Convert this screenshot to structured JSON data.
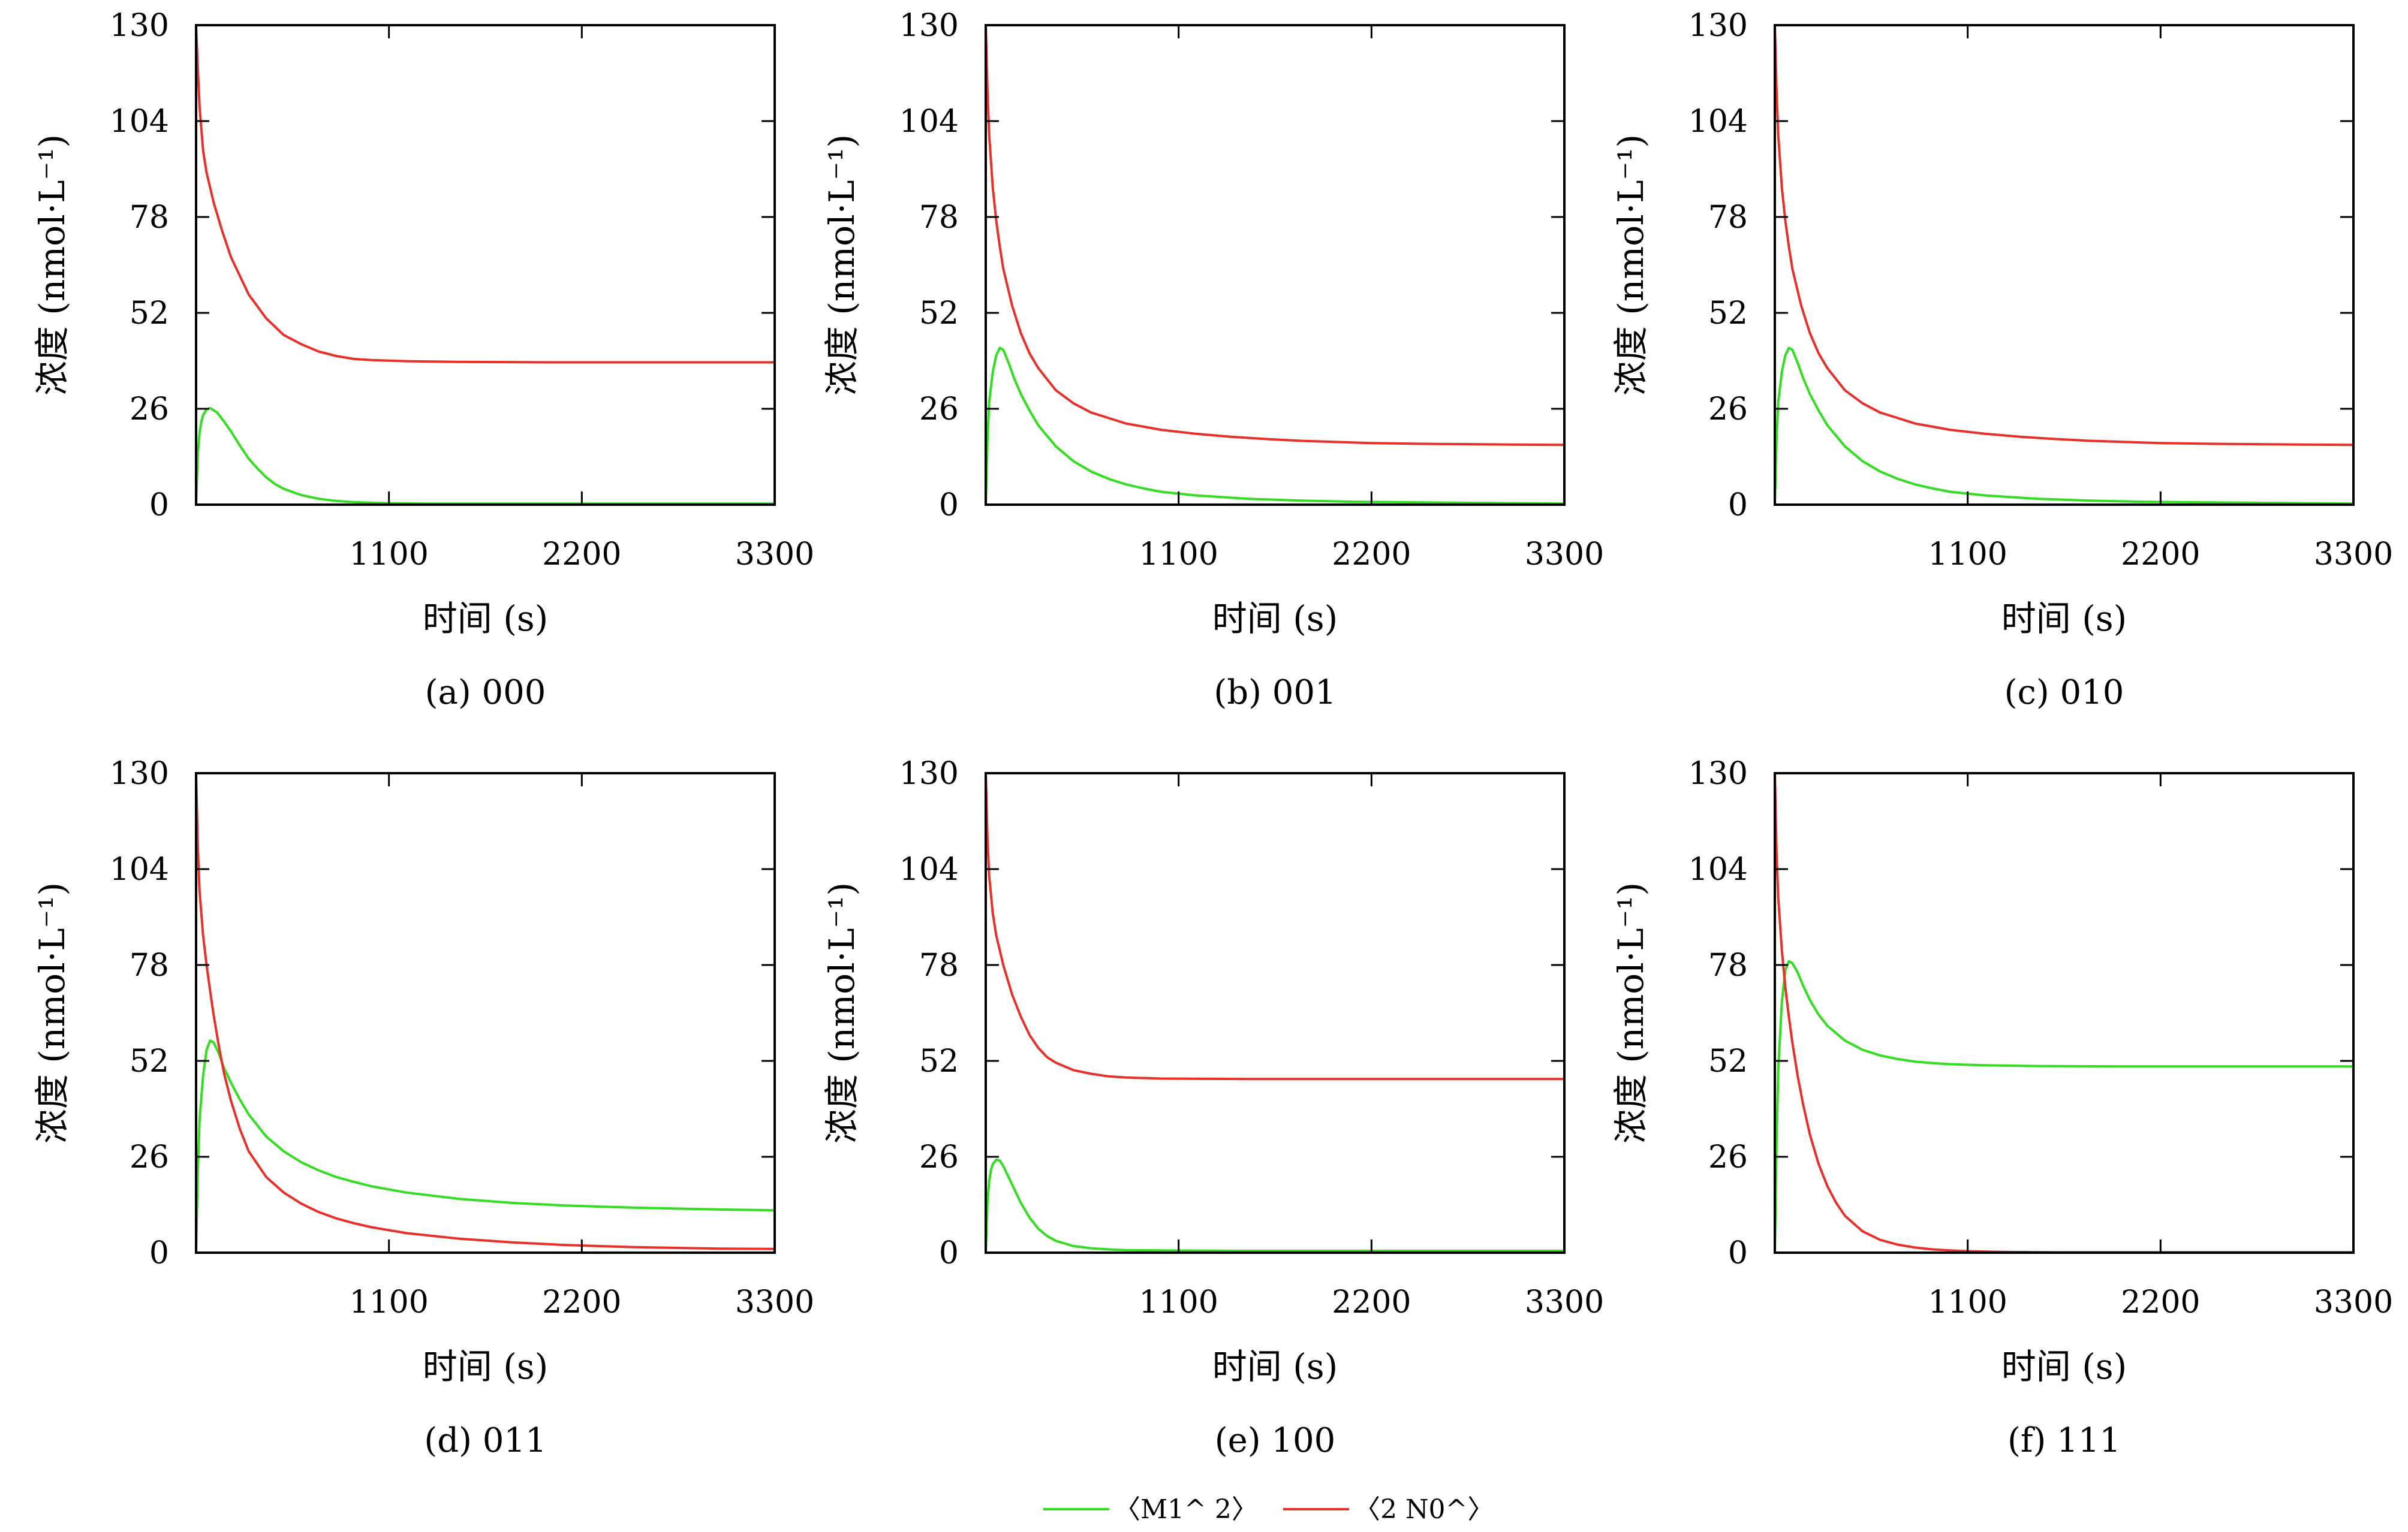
{
  "colors": {
    "green": "#33dd22",
    "red": "#e8302a",
    "frame": "#000000"
  },
  "legend": {
    "entries": [
      {
        "label": "〈M1^ 2〉",
        "color": "#33dd22"
      },
      {
        "label": "〈2 N0^〉",
        "color": "#e8302a"
      }
    ]
  },
  "chart_data": [
    {
      "type": "line",
      "caption": "(a) 000",
      "xlabel": "时间 (s)",
      "ylabel": "浓度 (nmol·L⁻¹)",
      "xlim": [
        0,
        3300
      ],
      "ylim": [
        0,
        130
      ],
      "xticks": [
        1100,
        2200,
        3300
      ],
      "yticks": [
        0,
        26,
        52,
        78,
        104,
        130
      ],
      "series": [
        {
          "name": "〈M1^ 2〉",
          "color": "#33dd22",
          "x": [
            0,
            10,
            20,
            30,
            40,
            60,
            80,
            120,
            160,
            200,
            250,
            300,
            350,
            400,
            450,
            500,
            600,
            700,
            800,
            900,
            1000,
            1100,
            1300,
            1600,
            2000,
            2500,
            3000,
            3300
          ],
          "y": [
            0,
            14,
            19.5,
            22.5,
            24.3,
            25.8,
            26.2,
            25.0,
            22.5,
            19.8,
            16.0,
            12.5,
            9.8,
            7.4,
            5.6,
            4.3,
            2.6,
            1.6,
            1.0,
            0.7,
            0.5,
            0.4,
            0.3,
            0.3,
            0.3,
            0.3,
            0.3,
            0.3
          ]
        },
        {
          "name": "〈2 N0^〉",
          "color": "#e8302a",
          "x": [
            0,
            10,
            20,
            40,
            60,
            80,
            100,
            150,
            200,
            250,
            300,
            400,
            500,
            600,
            700,
            800,
            900,
            1000,
            1200,
            1500,
            2000,
            2500,
            3000,
            3300
          ],
          "y": [
            130,
            118,
            108,
            96,
            90,
            86,
            82,
            74,
            67,
            62,
            57,
            50.5,
            46,
            43.5,
            41.5,
            40.3,
            39.5,
            39.2,
            38.9,
            38.7,
            38.6,
            38.6,
            38.6,
            38.6
          ]
        }
      ]
    },
    {
      "type": "line",
      "caption": "(b) 001",
      "xlabel": "时间 (s)",
      "ylabel": "浓度 (nmol·L⁻¹)",
      "xlim": [
        0,
        3300
      ],
      "ylim": [
        0,
        130
      ],
      "xticks": [
        1100,
        2200,
        3300
      ],
      "yticks": [
        0,
        26,
        52,
        78,
        104,
        130
      ],
      "series": [
        {
          "name": "〈M1^ 2〉",
          "color": "#33dd22",
          "x": [
            0,
            10,
            20,
            40,
            60,
            80,
            100,
            130,
            160,
            200,
            250,
            300,
            400,
            500,
            600,
            700,
            800,
            900,
            1000,
            1200,
            1500,
            1800,
            2100,
            2500,
            3000,
            3300
          ],
          "y": [
            0,
            18,
            28,
            36,
            40.5,
            42.5,
            42.0,
            38.5,
            34.5,
            30.0,
            25.5,
            21.5,
            15.8,
            11.8,
            9.0,
            7.0,
            5.5,
            4.4,
            3.5,
            2.5,
            1.6,
            1.1,
            0.8,
            0.6,
            0.4,
            0.3
          ]
        },
        {
          "name": "〈2 N0^〉",
          "color": "#e8302a",
          "x": [
            0,
            10,
            20,
            40,
            60,
            80,
            100,
            150,
            200,
            250,
            300,
            400,
            500,
            600,
            700,
            800,
            1000,
            1200,
            1400,
            1600,
            1800,
            2000,
            2200,
            2500,
            3000,
            3300
          ],
          "y": [
            130,
            112,
            100,
            86,
            77,
            70,
            64,
            54,
            46.5,
            41,
            37,
            31,
            27.5,
            25,
            23.5,
            22.0,
            20.3,
            19.2,
            18.4,
            17.8,
            17.3,
            17.0,
            16.7,
            16.5,
            16.3,
            16.2
          ]
        }
      ]
    },
    {
      "type": "line",
      "caption": "(c) 010",
      "xlabel": "时间 (s)",
      "ylabel": "浓度 (nmol·L⁻¹)",
      "xlim": [
        0,
        3300
      ],
      "ylim": [
        0,
        130
      ],
      "xticks": [
        1100,
        2200,
        3300
      ],
      "yticks": [
        0,
        26,
        52,
        78,
        104,
        130
      ],
      "series": [
        {
          "name": "〈M1^ 2〉",
          "color": "#33dd22",
          "x": [
            0,
            10,
            20,
            40,
            60,
            80,
            100,
            130,
            160,
            200,
            250,
            300,
            400,
            500,
            600,
            700,
            800,
            900,
            1000,
            1200,
            1500,
            1800,
            2100,
            2500,
            3000,
            3300
          ],
          "y": [
            0,
            18,
            28,
            36,
            40.5,
            42.5,
            42.0,
            38.5,
            34.5,
            30.0,
            25.5,
            21.5,
            15.8,
            11.8,
            9.0,
            7.0,
            5.5,
            4.4,
            3.5,
            2.5,
            1.6,
            1.1,
            0.8,
            0.6,
            0.4,
            0.3
          ]
        },
        {
          "name": "〈2 N0^〉",
          "color": "#e8302a",
          "x": [
            0,
            10,
            20,
            40,
            60,
            80,
            100,
            150,
            200,
            250,
            300,
            400,
            500,
            600,
            700,
            800,
            1000,
            1200,
            1400,
            1600,
            1800,
            2000,
            2200,
            2500,
            3000,
            3300
          ],
          "y": [
            130,
            112,
            100,
            86,
            77,
            70,
            64,
            54,
            46.5,
            41,
            37,
            31,
            27.5,
            25,
            23.5,
            22.0,
            20.3,
            19.2,
            18.4,
            17.8,
            17.3,
            17.0,
            16.7,
            16.5,
            16.3,
            16.2
          ]
        }
      ]
    },
    {
      "type": "line",
      "caption": "(d) 011",
      "xlabel": "时间 (s)",
      "ylabel": "浓度 (nmol·L⁻¹)",
      "xlim": [
        0,
        3300
      ],
      "ylim": [
        0,
        130
      ],
      "xticks": [
        1100,
        2200,
        3300
      ],
      "yticks": [
        0,
        26,
        52,
        78,
        104,
        130
      ],
      "series": [
        {
          "name": "〈M1^ 2〉",
          "color": "#33dd22",
          "x": [
            0,
            10,
            20,
            40,
            60,
            80,
            100,
            130,
            160,
            200,
            250,
            300,
            400,
            500,
            600,
            700,
            800,
            900,
            1000,
            1200,
            1500,
            1800,
            2100,
            2500,
            3000,
            3300
          ],
          "y": [
            0,
            22,
            36,
            48,
            55,
            57.5,
            57.0,
            54,
            50,
            46,
            41.5,
            37.5,
            31.5,
            27.5,
            24.5,
            22.3,
            20.5,
            19.2,
            18.0,
            16.3,
            14.6,
            13.5,
            12.8,
            12.2,
            11.7,
            11.5
          ]
        },
        {
          "name": "〈2 N0^〉",
          "color": "#e8302a",
          "x": [
            0,
            10,
            20,
            40,
            60,
            80,
            100,
            130,
            160,
            200,
            250,
            300,
            400,
            500,
            600,
            700,
            800,
            900,
            1000,
            1200,
            1500,
            1800,
            2100,
            2500,
            3000,
            3300
          ],
          "y": [
            130,
            110,
            98,
            86,
            78,
            71,
            64.5,
            56,
            48.5,
            41,
            33.5,
            27.5,
            20.5,
            16.3,
            13.3,
            11.0,
            9.3,
            8.0,
            6.9,
            5.3,
            3.8,
            2.8,
            2.1,
            1.5,
            1.1,
            1.0
          ]
        }
      ]
    },
    {
      "type": "line",
      "caption": "(e) 100",
      "xlabel": "时间 (s)",
      "ylabel": "浓度 (nmol·L⁻¹)",
      "xlim": [
        0,
        3300
      ],
      "ylim": [
        0,
        130
      ],
      "xticks": [
        1100,
        2200,
        3300
      ],
      "yticks": [
        0,
        26,
        52,
        78,
        104,
        130
      ],
      "series": [
        {
          "name": "〈M1^ 2〉",
          "color": "#33dd22",
          "x": [
            0,
            10,
            20,
            30,
            40,
            60,
            80,
            100,
            130,
            160,
            200,
            250,
            300,
            350,
            400,
            500,
            600,
            700,
            800,
            1000,
            1500,
            2000,
            2500,
            3000,
            3300
          ],
          "y": [
            0,
            14,
            19.5,
            22.5,
            24.0,
            25.2,
            25.0,
            23.5,
            20.5,
            17.5,
            13.5,
            9.5,
            6.5,
            4.5,
            3.2,
            1.8,
            1.2,
            0.9,
            0.7,
            0.6,
            0.5,
            0.5,
            0.5,
            0.5,
            0.5
          ]
        },
        {
          "name": "〈2 N0^〉",
          "color": "#e8302a",
          "x": [
            0,
            10,
            20,
            40,
            60,
            80,
            100,
            150,
            200,
            250,
            300,
            350,
            400,
            500,
            600,
            700,
            800,
            1000,
            1500,
            2000,
            2500,
            3000,
            3300
          ],
          "y": [
            130,
            112,
            102,
            92,
            86,
            82,
            78,
            70,
            64,
            59,
            55.5,
            53,
            51.5,
            49.5,
            48.5,
            47.8,
            47.5,
            47.2,
            47.1,
            47.1,
            47.1,
            47.1,
            47.1
          ]
        }
      ]
    },
    {
      "type": "line",
      "caption": "(f) 111",
      "xlabel": "时间 (s)",
      "ylabel": "浓度 (nmol·L⁻¹)",
      "xlim": [
        0,
        3300
      ],
      "ylim": [
        0,
        130
      ],
      "xticks": [
        1100,
        2200,
        3300
      ],
      "yticks": [
        0,
        26,
        52,
        78,
        104,
        130
      ],
      "series": [
        {
          "name": "〈M1^ 2〉",
          "color": "#33dd22",
          "x": [
            0,
            10,
            20,
            40,
            60,
            80,
            100,
            130,
            160,
            200,
            250,
            300,
            400,
            500,
            600,
            700,
            800,
            900,
            1000,
            1200,
            1500,
            2000,
            2500,
            3000,
            3300
          ],
          "y": [
            0,
            30,
            50,
            68,
            76.5,
            79,
            78.5,
            76,
            72.5,
            68.5,
            64.5,
            61.5,
            57.5,
            55.0,
            53.5,
            52.5,
            51.8,
            51.4,
            51.1,
            50.8,
            50.6,
            50.5,
            50.5,
            50.5,
            50.5
          ]
        },
        {
          "name": "〈2 N0^〉",
          "color": "#e8302a",
          "x": [
            0,
            10,
            20,
            40,
            60,
            80,
            100,
            130,
            160,
            200,
            250,
            300,
            350,
            400,
            500,
            600,
            700,
            800,
            900,
            1000,
            1100,
            1300,
            1600,
            2000,
            2500,
            3000,
            3300
          ],
          "y": [
            130,
            108,
            96,
            82,
            72,
            64,
            57,
            48,
            40.5,
            32,
            24,
            18,
            13.5,
            10,
            5.8,
            3.5,
            2.2,
            1.4,
            0.9,
            0.6,
            0.4,
            0.2,
            0.1,
            0.1,
            0.1,
            0.1,
            0.1
          ]
        }
      ]
    }
  ]
}
